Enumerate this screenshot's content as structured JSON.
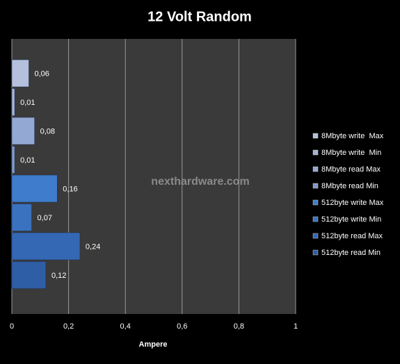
{
  "chart_data": {
    "type": "bar",
    "orientation": "horizontal",
    "title": "12 Volt Random",
    "x_label": "Ampere",
    "watermark": "nexthardware.com",
    "series": [
      {
        "name": "8Mbyte write  Max",
        "color": "#b4c0dc",
        "values": [
          0.06
        ],
        "value_labels": [
          "0,06"
        ]
      },
      {
        "name": "8Mbyte write  Min",
        "color": "#a4b3d6",
        "values": [
          0.01
        ],
        "value_labels": [
          "0,01"
        ]
      },
      {
        "name": "8Mbyte read Max",
        "color": "#93a8d2",
        "values": [
          0.08
        ],
        "value_labels": [
          "0,08"
        ]
      },
      {
        "name": "8Mbyte read Min",
        "color": "#8298c9",
        "values": [
          0.01
        ],
        "value_labels": [
          "0,01"
        ]
      },
      {
        "name": "512byte write Max",
        "color": "#3f7ccb",
        "values": [
          0.16
        ],
        "value_labels": [
          "0,16"
        ]
      },
      {
        "name": "512byte write Min",
        "color": "#3a72c0",
        "values": [
          0.07
        ],
        "value_labels": [
          "0,07"
        ]
      },
      {
        "name": "512byte read Max",
        "color": "#3468b5",
        "values": [
          0.24
        ],
        "value_labels": [
          "0,24"
        ]
      },
      {
        "name": "512byte read Min",
        "color": "#2e5ea6",
        "values": [
          0.12
        ],
        "value_labels": [
          "0,12"
        ]
      }
    ],
    "xlim": [
      0,
      1
    ],
    "xticks": [
      0,
      {
        "value": 0.2,
        "label": "0,2"
      },
      {
        "value": 0.4,
        "label": "0,4"
      },
      {
        "value": 0.6,
        "label": "0,6"
      },
      {
        "value": 0.8,
        "label": "0,8"
      },
      1
    ],
    "grid": true,
    "legend": "right"
  }
}
